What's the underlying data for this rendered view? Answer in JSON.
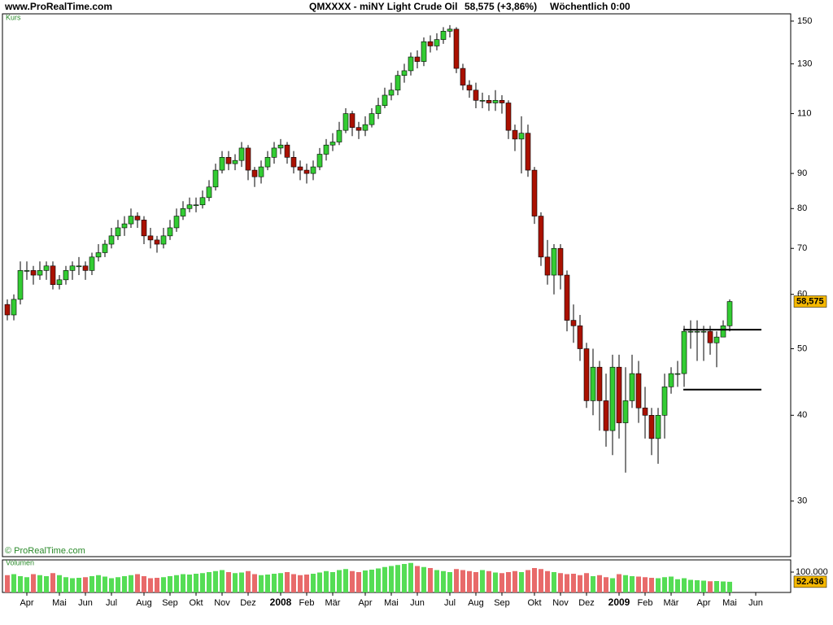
{
  "header": {
    "site": "www.ProRealTime.com",
    "instrument": "QMXXXX - miNY Light Crude Oil",
    "quote": "58,575 (+3,86%)",
    "period": "Wöchentlich  0:00"
  },
  "chart_data": [
    {
      "type": "candlestick",
      "panel_label": "Kurs",
      "credit": "© ProRealTime.com",
      "categories": [
        null,
        null,
        null,
        "Apr",
        null,
        null,
        null,
        null,
        "Mai",
        null,
        null,
        null,
        "Jun",
        null,
        null,
        null,
        "Jul",
        null,
        null,
        null,
        null,
        "Aug",
        null,
        null,
        null,
        "Sep",
        null,
        null,
        null,
        "Okt",
        null,
        null,
        null,
        "Nov",
        null,
        null,
        null,
        "Dez",
        null,
        null,
        null,
        null,
        "2008",
        null,
        null,
        null,
        "Feb",
        null,
        null,
        null,
        "Mär",
        null,
        null,
        null,
        null,
        "Apr",
        null,
        null,
        null,
        "Mai",
        null,
        null,
        null,
        "Jun",
        null,
        null,
        null,
        null,
        "Jul",
        null,
        null,
        null,
        "Aug",
        null,
        null,
        null,
        "Sep",
        null,
        null,
        null,
        null,
        "Okt",
        null,
        null,
        null,
        "Nov",
        null,
        null,
        null,
        "Dez",
        null,
        null,
        null,
        null,
        "2009",
        null,
        null,
        null,
        "Feb",
        null,
        null,
        null,
        "Mär",
        null,
        null,
        null,
        null,
        "Apr",
        null,
        null,
        null,
        "Mai",
        null,
        null,
        null,
        "Jun"
      ],
      "open": [
        58,
        56,
        59,
        65,
        65,
        64,
        65,
        66,
        62,
        63,
        65,
        66,
        66,
        65,
        68,
        69,
        71,
        73,
        75,
        76,
        78,
        77,
        73,
        72,
        71,
        73,
        75,
        78,
        80,
        81,
        81,
        83,
        86,
        91,
        95,
        93,
        94,
        98,
        91,
        89,
        92,
        95,
        98,
        99,
        95,
        92,
        91,
        90,
        92,
        96,
        99,
        100,
        104,
        110,
        105,
        104,
        106,
        110,
        113,
        117,
        119,
        125,
        127,
        133,
        131,
        140,
        138,
        141,
        145,
        146,
        128,
        121,
        119,
        115,
        115,
        114,
        115,
        114,
        104,
        101,
        103,
        91,
        78,
        68,
        64,
        70,
        64,
        55,
        54,
        50,
        42,
        47,
        42,
        38,
        47,
        39,
        42,
        46,
        41,
        40,
        37,
        40,
        44,
        46,
        46,
        53,
        53,
        53,
        53,
        51,
        52,
        54,
        null,
        null,
        null,
        null
      ],
      "high": [
        59,
        60,
        67,
        67,
        66,
        67,
        67,
        67,
        64,
        66,
        67,
        68,
        67,
        69,
        71,
        72,
        75,
        77,
        78,
        80,
        79,
        78,
        75,
        73,
        75,
        77,
        80,
        82,
        83,
        83,
        85,
        88,
        93,
        97,
        97,
        96,
        100,
        99,
        92,
        94,
        97,
        100,
        101,
        100,
        97,
        94,
        93,
        94,
        98,
        101,
        103,
        107,
        112,
        111,
        107,
        109,
        112,
        116,
        120,
        122,
        127,
        130,
        135,
        136,
        142,
        143,
        144,
        147,
        148,
        147,
        130,
        123,
        122,
        118,
        117,
        119,
        117,
        115,
        106,
        109,
        106,
        92,
        79,
        72,
        71,
        71,
        65,
        58,
        56,
        51,
        50,
        48,
        46,
        49,
        49,
        47,
        49,
        48,
        44,
        41,
        41,
        46,
        47,
        48,
        54,
        55,
        55,
        54,
        54,
        53,
        55,
        59,
        null,
        null,
        null,
        null
      ],
      "low": [
        55,
        55,
        58,
        63,
        62,
        63,
        63,
        61,
        61,
        62,
        63,
        64,
        63,
        64,
        67,
        68,
        70,
        72,
        73,
        75,
        75,
        71,
        70,
        69,
        70,
        72,
        74,
        77,
        79,
        79,
        80,
        82,
        85,
        90,
        91,
        91,
        92,
        88,
        86,
        87,
        91,
        93,
        96,
        93,
        90,
        88,
        87,
        88,
        91,
        94,
        97,
        99,
        103,
        102,
        101,
        102,
        105,
        108,
        112,
        115,
        117,
        122,
        125,
        128,
        129,
        135,
        136,
        139,
        142,
        126,
        119,
        116,
        112,
        112,
        111,
        111,
        110,
        101,
        97,
        90,
        89,
        76,
        66,
        62,
        60,
        61,
        53,
        51,
        48,
        41,
        40,
        38,
        36,
        35,
        37,
        33,
        41,
        39,
        37,
        35,
        34,
        37,
        43,
        44,
        44,
        50,
        48,
        48,
        49,
        47,
        52,
        53,
        null,
        null,
        null,
        null
      ],
      "close": [
        56,
        59,
        65,
        65,
        64,
        65,
        66,
        62,
        63,
        65,
        66,
        66,
        65,
        68,
        69,
        71,
        73,
        75,
        76,
        78,
        77,
        73,
        72,
        71,
        73,
        75,
        78,
        80,
        81,
        81,
        83,
        86,
        91,
        95,
        93,
        94,
        98,
        91,
        89,
        92,
        95,
        98,
        99,
        95,
        92,
        91,
        90,
        92,
        96,
        99,
        100,
        104,
        110,
        105,
        104,
        106,
        110,
        113,
        117,
        119,
        125,
        127,
        133,
        131,
        140,
        138,
        141,
        145,
        146,
        128,
        121,
        119,
        115,
        115,
        114,
        115,
        114,
        104,
        101,
        103,
        91,
        78,
        68,
        64,
        70,
        64,
        55,
        54,
        50,
        42,
        47,
        42,
        38,
        47,
        39,
        42,
        46,
        41,
        40,
        37,
        40,
        44,
        46,
        46,
        53,
        53,
        53,
        53,
        51,
        52,
        54,
        58.575,
        null,
        null,
        null,
        null
      ],
      "last_label": "58,575",
      "up_color": "#33cc33",
      "down_color": "#aa1100",
      "log_scale": true,
      "ylim": [
        24.9,
        153.7
      ],
      "yticks": [
        30,
        40,
        50,
        60,
        70,
        80,
        90,
        110,
        130,
        150
      ],
      "hlines": [
        53.3,
        43.6
      ]
    },
    {
      "type": "bar",
      "panel_label": "Volumen",
      "values": [
        85000,
        90000,
        80000,
        75000,
        90000,
        85000,
        80000,
        95000,
        85000,
        75000,
        70000,
        72000,
        75000,
        80000,
        85000,
        78000,
        70000,
        75000,
        80000,
        85000,
        90000,
        80000,
        70000,
        72000,
        75000,
        80000,
        85000,
        90000,
        88000,
        92000,
        95000,
        100000,
        105000,
        110000,
        100000,
        95000,
        98000,
        105000,
        90000,
        85000,
        88000,
        92000,
        95000,
        100000,
        90000,
        85000,
        88000,
        92000,
        98000,
        105000,
        100000,
        110000,
        115000,
        105000,
        100000,
        108000,
        112000,
        118000,
        125000,
        130000,
        135000,
        140000,
        145000,
        130000,
        125000,
        120000,
        110000,
        105000,
        100000,
        115000,
        110000,
        105000,
        100000,
        110000,
        105000,
        98000,
        95000,
        100000,
        105000,
        100000,
        110000,
        120000,
        115000,
        105000,
        100000,
        95000,
        90000,
        92000,
        85000,
        95000,
        80000,
        85000,
        75000,
        70000,
        90000,
        85000,
        80000,
        78000,
        75000,
        72000,
        70000,
        75000,
        78000,
        65000,
        70000,
        62000,
        60000,
        58000,
        55000,
        56000,
        54000,
        52436,
        null,
        null,
        null,
        null
      ],
      "last_label": "52.436",
      "up_color": "#55dd55",
      "down_color": "#e86a6a",
      "ylim": [
        0,
        160000
      ],
      "yticks": [
        {
          "value": 100000,
          "label": "100.000"
        }
      ]
    }
  ]
}
